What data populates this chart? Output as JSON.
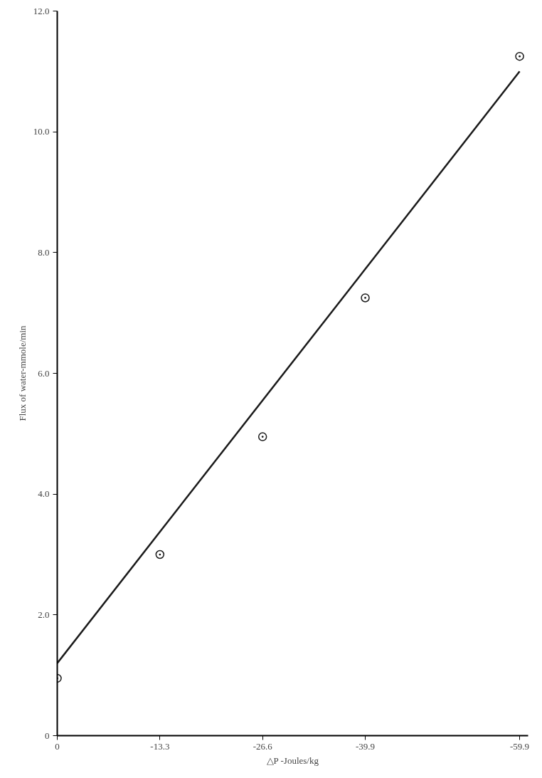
{
  "chart_data": {
    "type": "scatter",
    "xlabel": "△P -Joules/kg",
    "ylabel": "Flux of water-mmole/min",
    "x": [
      0,
      -13.3,
      -26.6,
      -39.9,
      -59.9
    ],
    "series": [
      {
        "color": "#1a1a1a",
        "values": [
          0.95,
          3.0,
          4.95,
          7.25,
          11.25
        ],
        "marker": "circle"
      },
      {
        "type": "line",
        "color": "#1a1a1a",
        "x": [
          0,
          -59.9
        ],
        "values": [
          1.2,
          11.0
        ],
        "line_style": "solid"
      }
    ],
    "xlim": [
      0,
      -61
    ],
    "ylim": [
      0,
      12
    ],
    "xticks": [
      0,
      -13.3,
      -26.6,
      -39.9,
      -59.9
    ],
    "yticks": [
      0,
      {
        "value": 2,
        "label": "2.0"
      },
      {
        "value": 4,
        "label": "4.0"
      },
      {
        "value": 6,
        "label": "6.0"
      },
      {
        "value": 8,
        "label": "8.0"
      },
      {
        "value": 10,
        "label": "10.0"
      },
      {
        "value": 12,
        "label": "12.0"
      }
    ],
    "grid": false
  }
}
